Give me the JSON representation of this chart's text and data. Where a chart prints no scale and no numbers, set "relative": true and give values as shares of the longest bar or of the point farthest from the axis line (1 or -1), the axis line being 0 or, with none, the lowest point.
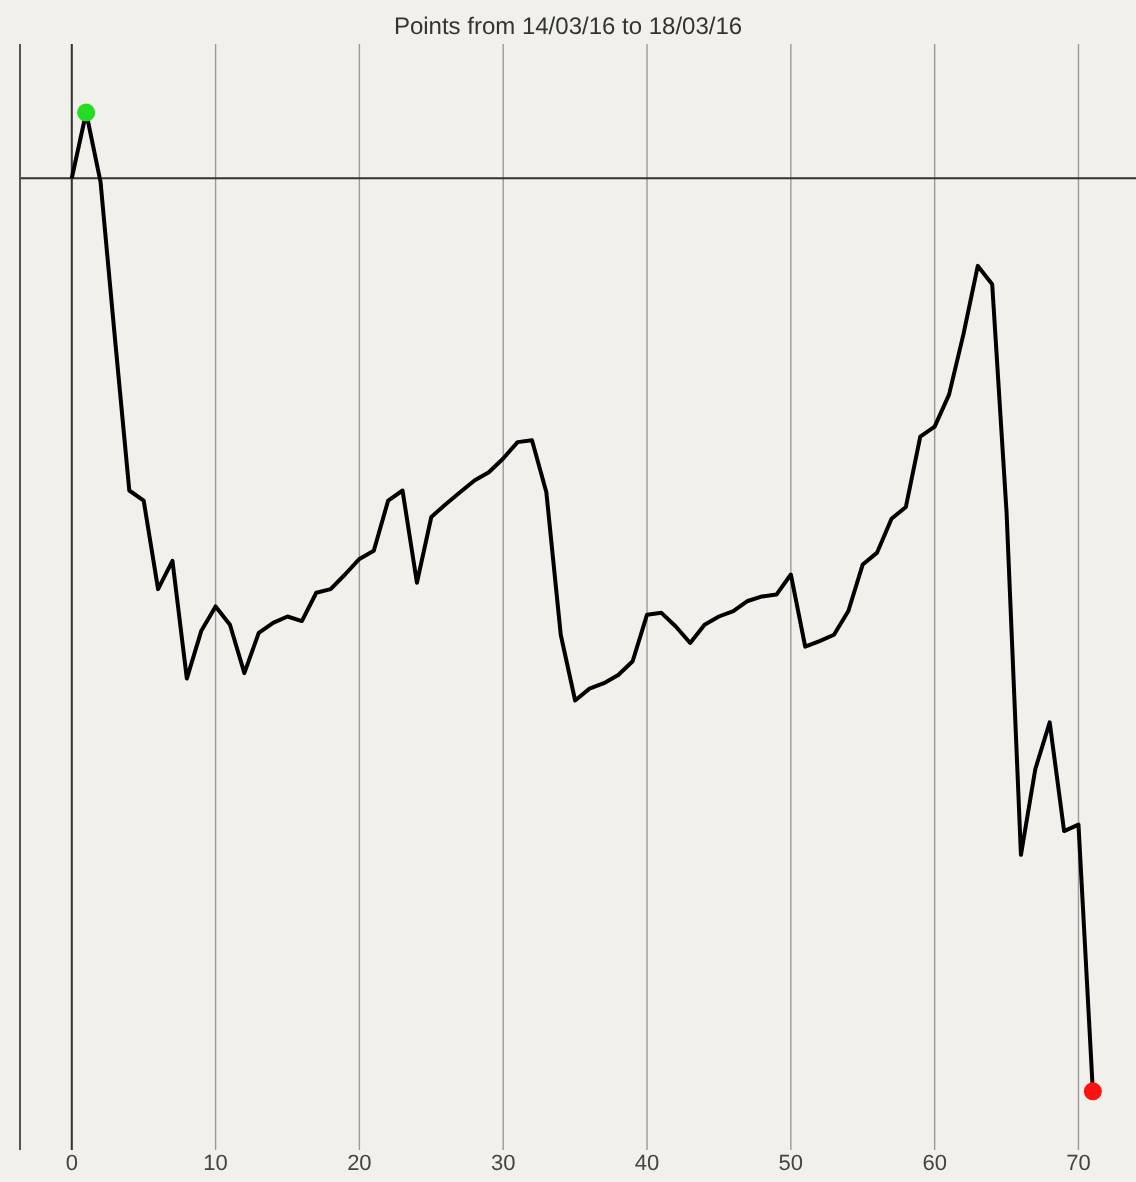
{
  "chart_data": {
    "type": "line",
    "title": "Points from 14/03/16 to 18/03/16",
    "relative": true,
    "xlim": [
      -3.6,
      74
    ],
    "xticks": [
      0,
      10,
      20,
      30,
      40,
      50,
      60,
      70
    ],
    "grid": "x",
    "series": [
      {
        "color": "#000000",
        "marker": "none",
        "line_style": "solid",
        "x": [
          0,
          1,
          2,
          3,
          4,
          5,
          6,
          7,
          8,
          9,
          10,
          11,
          12,
          13,
          14,
          15,
          16,
          17,
          18,
          19,
          20,
          21,
          22,
          23,
          24,
          25,
          26,
          27,
          28,
          29,
          30,
          31,
          32,
          33,
          34,
          35,
          36,
          37,
          38,
          39,
          40,
          41,
          42,
          43,
          44,
          45,
          46,
          47,
          48,
          49,
          50,
          51,
          52,
          53,
          54,
          55,
          56,
          57,
          58,
          59,
          60,
          61,
          62,
          63,
          64,
          65,
          66,
          67,
          68,
          69,
          70,
          71
        ],
        "values": [
          0,
          0.072,
          -0.004,
          -0.175,
          -0.342,
          -0.353,
          -0.45,
          -0.419,
          -0.548,
          -0.496,
          -0.469,
          -0.489,
          -0.542,
          -0.498,
          -0.487,
          -0.48,
          -0.485,
          -0.454,
          -0.45,
          -0.434,
          -0.417,
          -0.408,
          -0.353,
          -0.342,
          -0.443,
          -0.371,
          -0.357,
          -0.344,
          -0.331,
          -0.322,
          -0.307,
          -0.289,
          -0.287,
          -0.344,
          -0.5,
          -0.572,
          -0.559,
          -0.553,
          -0.544,
          -0.529,
          -0.478,
          -0.476,
          -0.491,
          -0.509,
          -0.489,
          -0.48,
          -0.474,
          -0.463,
          -0.458,
          -0.456,
          -0.434,
          -0.513,
          -0.507,
          -0.5,
          -0.474,
          -0.423,
          -0.41,
          -0.373,
          -0.36,
          -0.283,
          -0.272,
          -0.237,
          -0.171,
          -0.096,
          -0.116,
          -0.366,
          -0.741,
          -0.647,
          -0.596,
          -0.715,
          -0.708,
          -1
        ]
      },
      {
        "type": "scatter",
        "color": "#22dd22",
        "marker": "circle",
        "x": [
          1
        ],
        "values": [
          0.072
        ]
      },
      {
        "type": "scatter",
        "color": "#ff1111",
        "marker": "circle",
        "x": [
          71
        ],
        "values": [
          -1
        ]
      }
    ]
  }
}
